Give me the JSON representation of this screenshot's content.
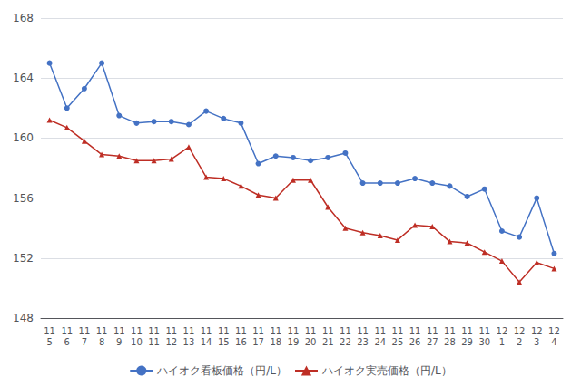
{
  "chart_data": {
    "type": "line",
    "categories": [
      "11\n5",
      "11\n6",
      "11\n7",
      "11\n8",
      "11\n9",
      "11\n10",
      "11\n11",
      "11\n12",
      "11\n13",
      "11\n14",
      "11\n15",
      "11\n16",
      "11\n17",
      "11\n18",
      "11\n19",
      "11\n20",
      "11\n21",
      "11\n22",
      "11\n23",
      "11\n24",
      "11\n25",
      "11\n26",
      "11\n27",
      "11\n28",
      "11\n29",
      "11\n30",
      "12\n1",
      "12\n2",
      "12\n3",
      "12\n4"
    ],
    "series": [
      {
        "name": "ハイオク看板価格（円/L）",
        "color": "#4472C4",
        "marker": "circle",
        "values": [
          165.0,
          162.0,
          163.3,
          165.0,
          161.5,
          161.0,
          161.1,
          161.1,
          160.9,
          161.8,
          161.3,
          161.0,
          158.3,
          158.8,
          158.7,
          158.5,
          158.7,
          159.0,
          157.0,
          157.0,
          157.0,
          157.3,
          157.0,
          156.8,
          156.1,
          156.6,
          153.8,
          153.4,
          156.0,
          152.3
        ]
      },
      {
        "name": "ハイオク実売価格（円/L）",
        "color": "#BE2E25",
        "marker": "triangle",
        "values": [
          161.2,
          160.7,
          159.8,
          158.9,
          158.8,
          158.5,
          158.5,
          158.6,
          159.4,
          157.4,
          157.3,
          156.8,
          156.2,
          156.0,
          157.2,
          157.2,
          155.4,
          154.0,
          153.7,
          153.5,
          153.2,
          154.2,
          154.1,
          153.1,
          153.0,
          152.4,
          151.8,
          150.4,
          151.7,
          151.3
        ]
      }
    ],
    "ylim": [
      148,
      168
    ],
    "yticks": [
      148,
      152,
      156,
      160,
      164,
      168
    ],
    "grid": true,
    "legend": "bottom"
  }
}
